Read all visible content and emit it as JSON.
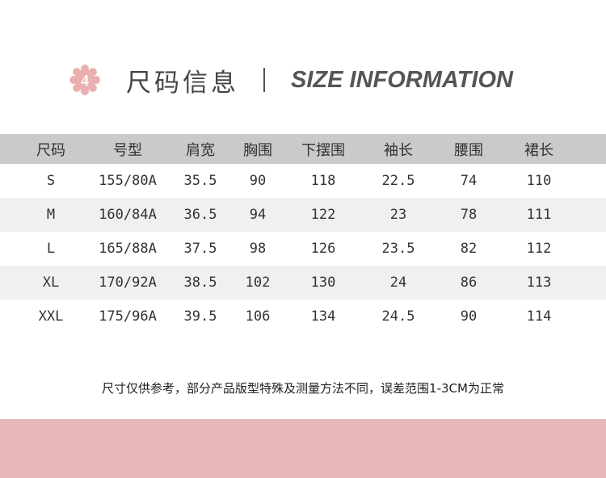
{
  "header": {
    "badge_number": "4",
    "title_cn": "尺码信息",
    "title_en": "SIZE INFORMATION",
    "accent_color": "#eab0b0"
  },
  "table": {
    "columns": [
      "尺码",
      "号型",
      "肩宽",
      "胸围",
      "下摆围",
      "袖长",
      "腰围",
      "裙长"
    ],
    "rows": [
      [
        "S",
        "155/80A",
        "35.5",
        "90",
        "118",
        "22.5",
        "74",
        "110"
      ],
      [
        "M",
        "160/84A",
        "36.5",
        "94",
        "122",
        "23",
        "78",
        "111"
      ],
      [
        "L",
        "165/88A",
        "37.5",
        "98",
        "126",
        "23.5",
        "82",
        "112"
      ],
      [
        "XL",
        "170/92A",
        "38.5",
        "102",
        "130",
        "24",
        "86",
        "113"
      ],
      [
        "XXL",
        "175/96A",
        "39.5",
        "106",
        "134",
        "24.5",
        "90",
        "114"
      ]
    ]
  },
  "note": "尺寸仅供参考，部分产品版型特殊及测量方法不同，误差范围1-3CM为正常",
  "footer_band_color": "#e8b8b8"
}
